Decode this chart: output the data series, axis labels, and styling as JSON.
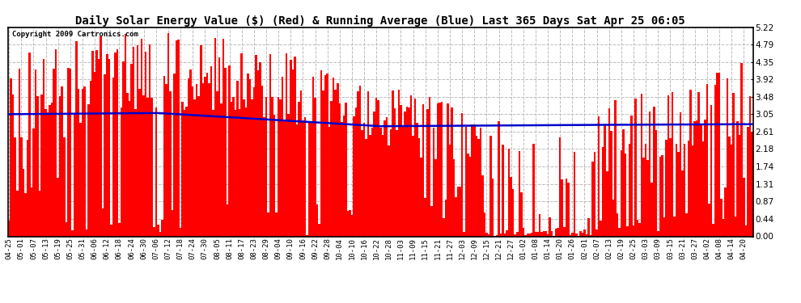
{
  "title": "Daily Solar Energy Value ($) (Red) & Running Average (Blue) Last 365 Days Sat Apr 25 06:05",
  "copyright": "Copyright 2009 Cartronics.com",
  "ylim": [
    0.0,
    5.22
  ],
  "yticks": [
    0.0,
    0.44,
    0.87,
    1.31,
    1.74,
    2.18,
    2.61,
    3.05,
    3.48,
    3.92,
    4.35,
    4.79,
    5.22
  ],
  "bar_color": "#ff0000",
  "avg_color": "#0000cc",
  "bg_color": "#ffffff",
  "plot_bg": "#ffffff",
  "grid_color": "#aaaaaa",
  "title_fontsize": 10,
  "x_labels": [
    "04-25",
    "05-01",
    "05-07",
    "05-13",
    "05-19",
    "05-25",
    "05-31",
    "06-06",
    "06-12",
    "06-18",
    "06-24",
    "06-30",
    "07-06",
    "07-12",
    "07-18",
    "07-24",
    "07-30",
    "08-05",
    "08-11",
    "08-17",
    "08-23",
    "08-29",
    "09-04",
    "09-10",
    "09-16",
    "09-22",
    "09-28",
    "10-04",
    "10-10",
    "10-16",
    "10-22",
    "10-28",
    "11-03",
    "11-09",
    "11-15",
    "11-21",
    "11-27",
    "12-03",
    "12-09",
    "12-15",
    "12-21",
    "12-27",
    "01-02",
    "01-08",
    "01-14",
    "01-20",
    "01-26",
    "02-01",
    "02-07",
    "02-13",
    "02-19",
    "02-25",
    "03-03",
    "03-09",
    "03-15",
    "03-21",
    "03-27",
    "04-02",
    "04-08",
    "04-14",
    "04-20"
  ],
  "x_label_days": [
    0,
    6,
    12,
    18,
    24,
    30,
    36,
    42,
    48,
    54,
    60,
    66,
    72,
    78,
    84,
    90,
    96,
    102,
    108,
    114,
    120,
    126,
    132,
    138,
    144,
    150,
    156,
    162,
    168,
    174,
    180,
    186,
    192,
    198,
    204,
    210,
    216,
    222,
    228,
    234,
    240,
    246,
    252,
    258,
    264,
    270,
    276,
    282,
    288,
    294,
    300,
    306,
    312,
    318,
    324,
    330,
    336,
    342,
    348,
    354,
    360
  ]
}
